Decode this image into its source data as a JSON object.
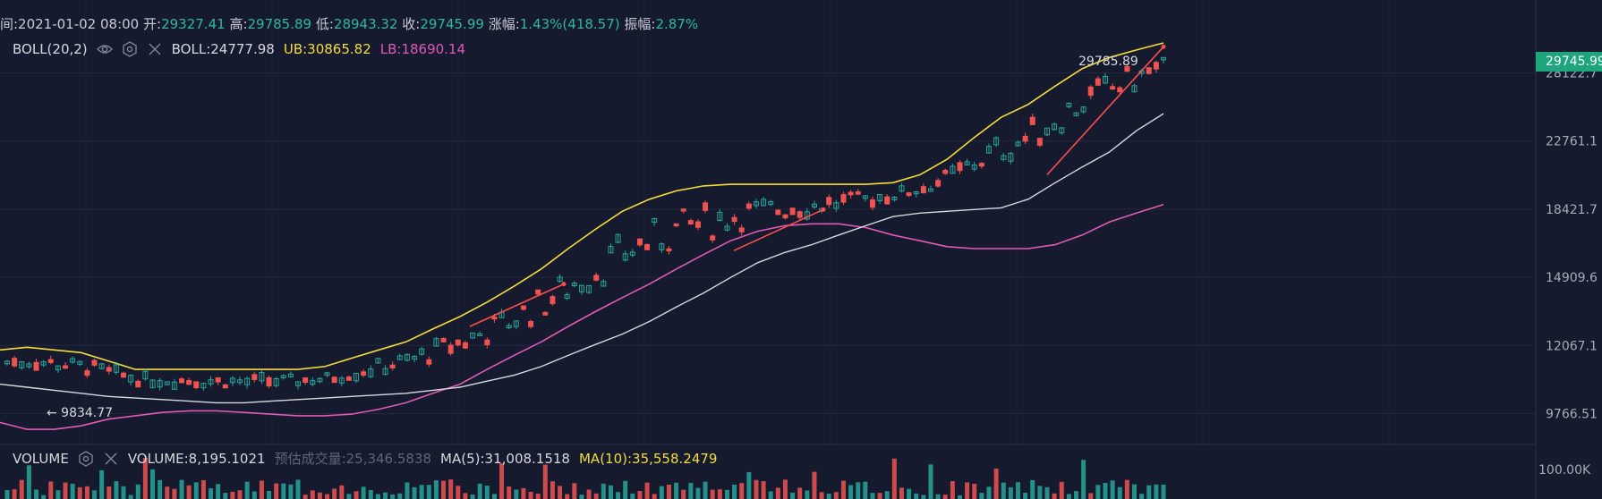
{
  "header": {
    "time_label": "间:2021-01-02 08:00",
    "open_label": "开:",
    "open": "29327.41",
    "high_label": "高:",
    "high": "29785.89",
    "low_label": "低:",
    "low": "28943.32",
    "close_label": "收:",
    "close": "29745.99",
    "change_label": "涨幅:",
    "change": "1.43%(418.57)",
    "amp_label": "振幅:",
    "amp": "2.87%"
  },
  "boll_legend": {
    "name": "BOLL(20,2)",
    "boll": "BOLL:24777.98",
    "ub": "UB:30865.82",
    "lb": "LB:18690.14"
  },
  "volume_legend": {
    "name": "VOLUME",
    "volume": "VOLUME:8,195.1021",
    "estimate": "预估成交量:25,346.5838",
    "ma5": "MA(5):31,008.1518",
    "ma10": "MA(10):35,558.2479"
  },
  "last_price_tag": "29745.99",
  "annotations": {
    "high_label": "29785.89",
    "low_label": "← 9834.77"
  },
  "colors": {
    "up": "#26a69a",
    "down": "#ef5350",
    "mid": "#d6d9e2",
    "ub": "#f4dd3a",
    "lb": "#e05ab6",
    "trend": "#ff4d4d",
    "bg": "#161a2e"
  },
  "chart_data": {
    "type": "candlestick",
    "y_axis": {
      "ticks": [
        9766.51,
        12067.1,
        14909.6,
        18421.7,
        22761.1,
        28122.7
      ],
      "scale": "log"
    },
    "volume_axis": {
      "ticks": [
        "100.00K"
      ]
    },
    "series": [
      {
        "name": "BOLL",
        "values": [
          10700,
          10600,
          10500,
          10400,
          10300,
          10250,
          10200,
          10150,
          10100,
          10100,
          10150,
          10200,
          10250,
          10300,
          10350,
          10400,
          10500,
          10600,
          10800,
          11000,
          11300,
          11700,
          12100,
          12500,
          13000,
          13600,
          14200,
          14900,
          15600,
          16100,
          16500,
          17000,
          17500,
          18000,
          18200,
          18300,
          18400,
          18500,
          19000,
          20000,
          21000,
          22000,
          23500,
          24778
        ]
      },
      {
        "name": "UB",
        "values": [
          11900,
          12000,
          11900,
          11800,
          11500,
          11200,
          11200,
          11200,
          11200,
          11200,
          11200,
          11200,
          11300,
          11600,
          11900,
          12200,
          12700,
          13200,
          13800,
          14500,
          15300,
          16300,
          17300,
          18300,
          19000,
          19500,
          19800,
          19900,
          19900,
          19900,
          19900,
          19900,
          19900,
          20000,
          20500,
          21500,
          23000,
          24500,
          25500,
          27000,
          28500,
          29500,
          30200,
          30866
        ]
      },
      {
        "name": "LB",
        "values": [
          9500,
          9300,
          9300,
          9400,
          9600,
          9700,
          9800,
          9850,
          9850,
          9800,
          9750,
          9700,
          9700,
          9750,
          9900,
          10100,
          10400,
          10700,
          11200,
          11700,
          12200,
          12800,
          13400,
          14000,
          14600,
          15300,
          16000,
          16700,
          17200,
          17500,
          17600,
          17600,
          17400,
          17000,
          16700,
          16400,
          16300,
          16300,
          16300,
          16500,
          17000,
          17700,
          18200,
          18690
        ]
      }
    ]
  }
}
